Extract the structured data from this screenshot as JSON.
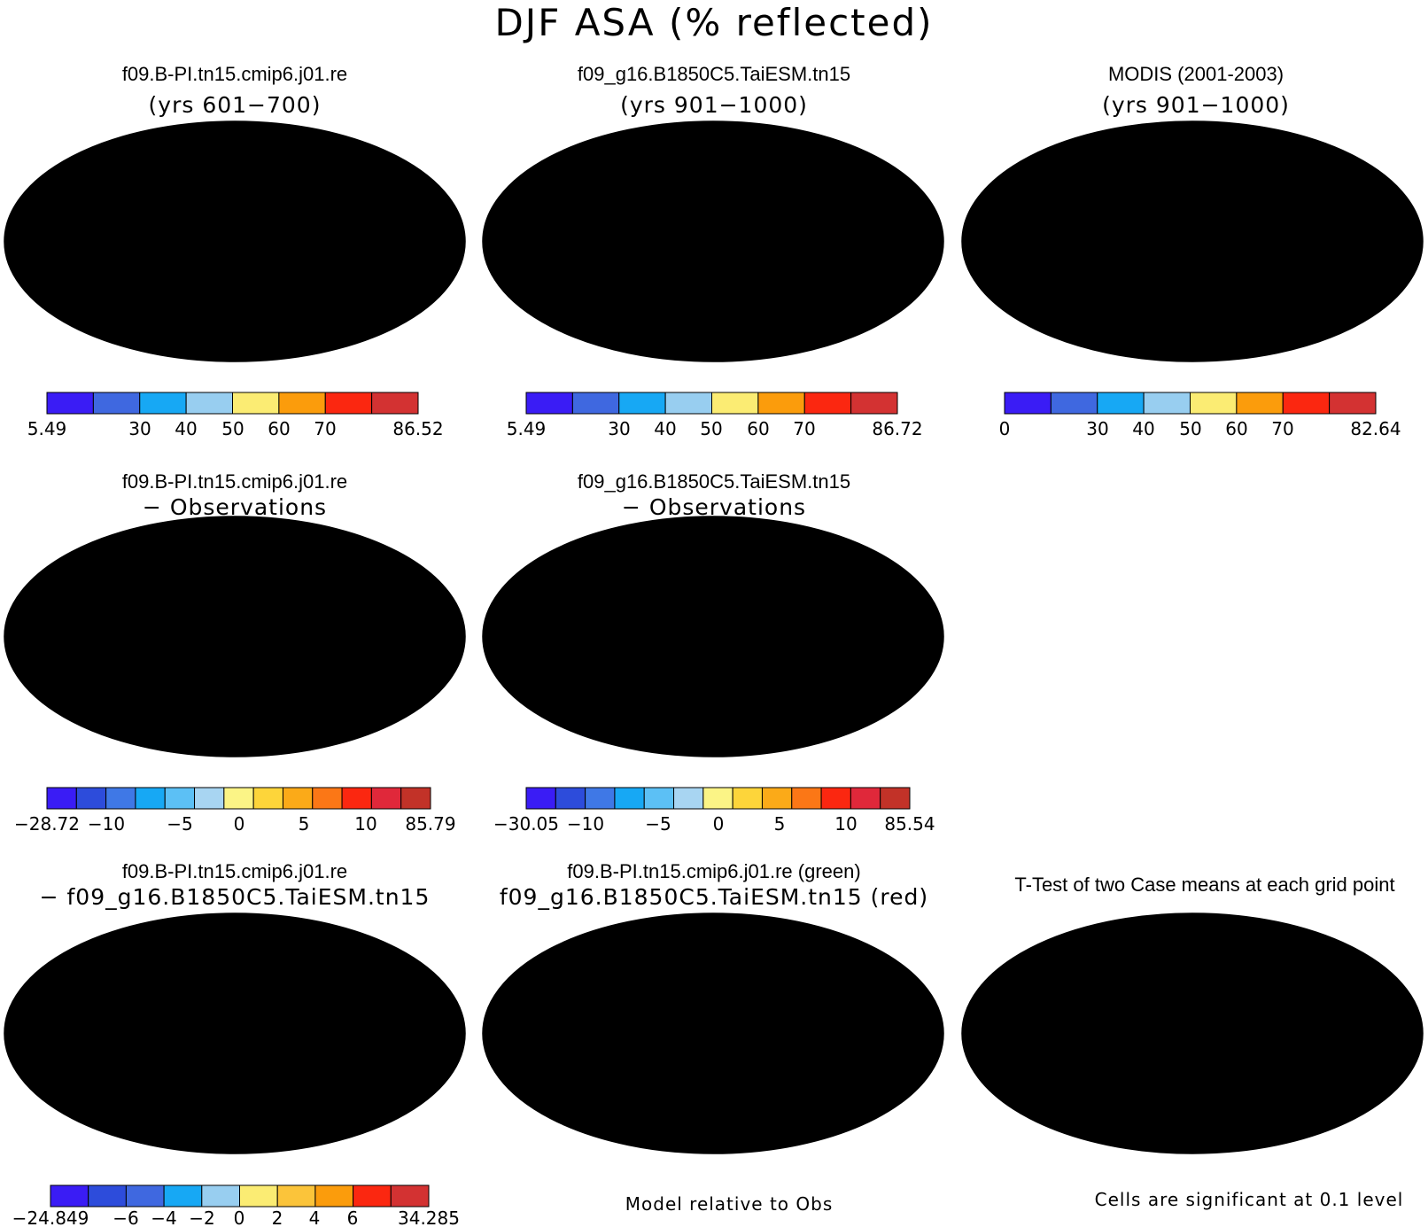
{
  "figure_title": "DJF ASA (% reflected)",
  "colors": {
    "abs": [
      "#3a1cf5",
      "#3f68e0",
      "#17a8f4",
      "#98cef0",
      "#fbec73",
      "#fb9c0c",
      "#fb2710",
      "#d33232"
    ],
    "diff": [
      "#3a1cf5",
      "#2d4cdb",
      "#3f78e6",
      "#17a8f4",
      "#5cc0f5",
      "#a8d5f2",
      "#fbf486",
      "#fdd53a",
      "#fbaa18",
      "#fb7716",
      "#fb2710",
      "#e0283a",
      "#c23228"
    ],
    "diff_ab": [
      "#3a1cf5",
      "#2d4cdb",
      "#3f68e0",
      "#17a8f4",
      "#98cef0",
      "#fbec73",
      "#fbc43a",
      "#fb9c0c",
      "#fb2710",
      "#d33232"
    ],
    "land_base": "#3a1cf5",
    "green": "#14e014",
    "red": "#fa0a0a"
  },
  "chart_data": [
    {
      "type": "heatmap",
      "id": "p1",
      "title": "f09.B-PI.tn15.cmip6.j01.re",
      "subtitle": "(yrs 601−700)",
      "colorbar_labels": [
        "5.49",
        "30",
        "40",
        "50",
        "60",
        "70",
        "86.52"
      ],
      "value_range": [
        5.49,
        86.52
      ]
    },
    {
      "type": "heatmap",
      "id": "p2",
      "title": "f09_g16.B1850C5.TaiESM.tn15",
      "subtitle": "(yrs 901−1000)",
      "colorbar_labels": [
        "5.49",
        "30",
        "40",
        "50",
        "60",
        "70",
        "86.72"
      ],
      "value_range": [
        5.49,
        86.72
      ]
    },
    {
      "type": "heatmap",
      "id": "p3",
      "title": "MODIS (2001-2003)",
      "subtitle": "(yrs 901−1000)",
      "colorbar_labels": [
        "0",
        "30",
        "40",
        "50",
        "60",
        "70",
        "82.64"
      ],
      "value_range": [
        0,
        82.64
      ]
    },
    {
      "type": "heatmap",
      "id": "p4",
      "title": "f09.B-PI.tn15.cmip6.j01.re",
      "subtitle": "− Observations",
      "colorbar_labels": [
        "−28.72",
        "−10",
        "−5",
        "0",
        "5",
        "10",
        "85.79"
      ],
      "value_range": [
        -28.72,
        85.79
      ]
    },
    {
      "type": "heatmap",
      "id": "p5",
      "title": "f09_g16.B1850C5.TaiESM.tn15",
      "subtitle": "− Observations",
      "colorbar_labels": [
        "−30.05",
        "−10",
        "−5",
        "0",
        "5",
        "10",
        "85.54"
      ],
      "value_range": [
        -30.05,
        85.54
      ]
    },
    {
      "type": "heatmap",
      "id": "p6",
      "title": "f09.B-PI.tn15.cmip6.j01.re",
      "subtitle": "− f09_g16.B1850C5.TaiESM.tn15",
      "colorbar_labels": [
        "−24.849",
        "−6",
        "−4",
        "−2",
        "0",
        "2",
        "4",
        "6",
        "34.285"
      ],
      "value_range": [
        -24.849,
        34.285
      ]
    },
    {
      "type": "heatmap",
      "id": "p7",
      "title": "f09.B-PI.tn15.cmip6.j01.re (green)",
      "subtitle": "f09_g16.B1850C5.TaiESM.tn15 (red)",
      "footnote": "Model relative to Obs"
    },
    {
      "type": "heatmap",
      "id": "p8",
      "title": "T-Test of two Case means at each grid point",
      "footnote": "Cells are significant at 0.1 level"
    }
  ]
}
